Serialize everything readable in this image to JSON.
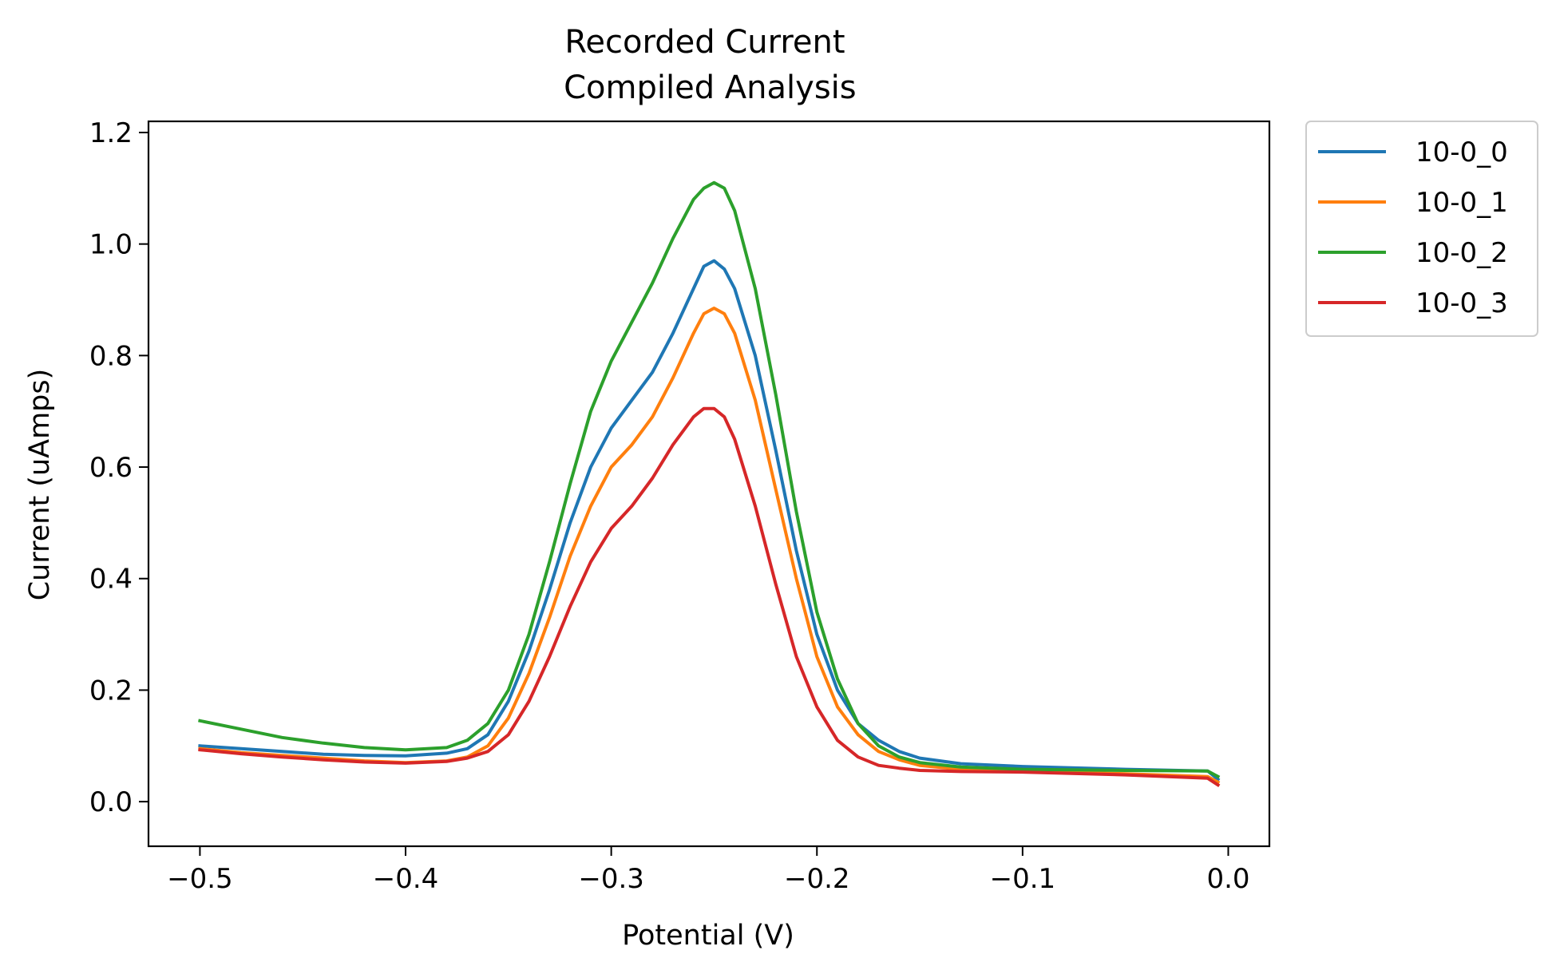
{
  "chart_data": {
    "type": "line",
    "title_lines": [
      "Recorded Current",
      " Compiled Analysis"
    ],
    "xlabel": "Potential (V)",
    "ylabel": "Current (uAmps)",
    "xlim": [
      -0.525,
      0.02
    ],
    "ylim": [
      -0.08,
      1.22
    ],
    "xticks": [
      -0.5,
      -0.4,
      -0.3,
      -0.2,
      -0.1,
      0.0
    ],
    "xtick_labels": [
      "−0.5",
      "−0.4",
      "−0.3",
      "−0.2",
      "−0.1",
      "0.0"
    ],
    "yticks": [
      0.0,
      0.2,
      0.4,
      0.6,
      0.8,
      1.0,
      1.2
    ],
    "ytick_labels": [
      "0.0",
      "0.2",
      "0.4",
      "0.6",
      "0.8",
      "1.0",
      "1.2"
    ],
    "grid": false,
    "legend_position": "outside-top-right",
    "x": [
      -0.5,
      -0.48,
      -0.46,
      -0.44,
      -0.42,
      -0.4,
      -0.38,
      -0.37,
      -0.36,
      -0.35,
      -0.34,
      -0.33,
      -0.32,
      -0.31,
      -0.3,
      -0.29,
      -0.28,
      -0.27,
      -0.26,
      -0.255,
      -0.25,
      -0.245,
      -0.24,
      -0.23,
      -0.22,
      -0.21,
      -0.2,
      -0.19,
      -0.18,
      -0.17,
      -0.16,
      -0.15,
      -0.13,
      -0.1,
      -0.05,
      -0.01,
      -0.005
    ],
    "series": [
      {
        "name": "10-0_0",
        "color": "#1f77b4",
        "values": [
          0.1,
          0.095,
          0.09,
          0.085,
          0.083,
          0.082,
          0.087,
          0.095,
          0.12,
          0.18,
          0.27,
          0.38,
          0.5,
          0.6,
          0.67,
          0.72,
          0.77,
          0.84,
          0.92,
          0.96,
          0.97,
          0.955,
          0.92,
          0.8,
          0.63,
          0.45,
          0.3,
          0.2,
          0.14,
          0.11,
          0.09,
          0.078,
          0.068,
          0.063,
          0.058,
          0.055,
          0.04
        ]
      },
      {
        "name": "10-0_1",
        "color": "#ff7f0e",
        "values": [
          0.095,
          0.088,
          0.083,
          0.078,
          0.073,
          0.07,
          0.073,
          0.08,
          0.1,
          0.15,
          0.23,
          0.33,
          0.44,
          0.53,
          0.6,
          0.64,
          0.69,
          0.76,
          0.84,
          0.875,
          0.885,
          0.875,
          0.84,
          0.72,
          0.56,
          0.4,
          0.26,
          0.17,
          0.12,
          0.09,
          0.075,
          0.065,
          0.058,
          0.055,
          0.05,
          0.045,
          0.035
        ]
      },
      {
        "name": "10-0_2",
        "color": "#2ca02c",
        "values": [
          0.145,
          0.13,
          0.115,
          0.105,
          0.097,
          0.093,
          0.097,
          0.11,
          0.14,
          0.2,
          0.3,
          0.43,
          0.57,
          0.7,
          0.79,
          0.86,
          0.93,
          1.01,
          1.08,
          1.1,
          1.11,
          1.1,
          1.06,
          0.92,
          0.73,
          0.52,
          0.34,
          0.22,
          0.14,
          0.1,
          0.08,
          0.07,
          0.062,
          0.058,
          0.056,
          0.055,
          0.045
        ]
      },
      {
        "name": "10-0_3",
        "color": "#d62728",
        "values": [
          0.093,
          0.086,
          0.08,
          0.075,
          0.071,
          0.069,
          0.072,
          0.078,
          0.09,
          0.12,
          0.18,
          0.26,
          0.35,
          0.43,
          0.49,
          0.53,
          0.58,
          0.64,
          0.69,
          0.705,
          0.705,
          0.69,
          0.65,
          0.53,
          0.39,
          0.26,
          0.17,
          0.11,
          0.08,
          0.065,
          0.06,
          0.056,
          0.054,
          0.053,
          0.048,
          0.042,
          0.03
        ]
      }
    ]
  }
}
